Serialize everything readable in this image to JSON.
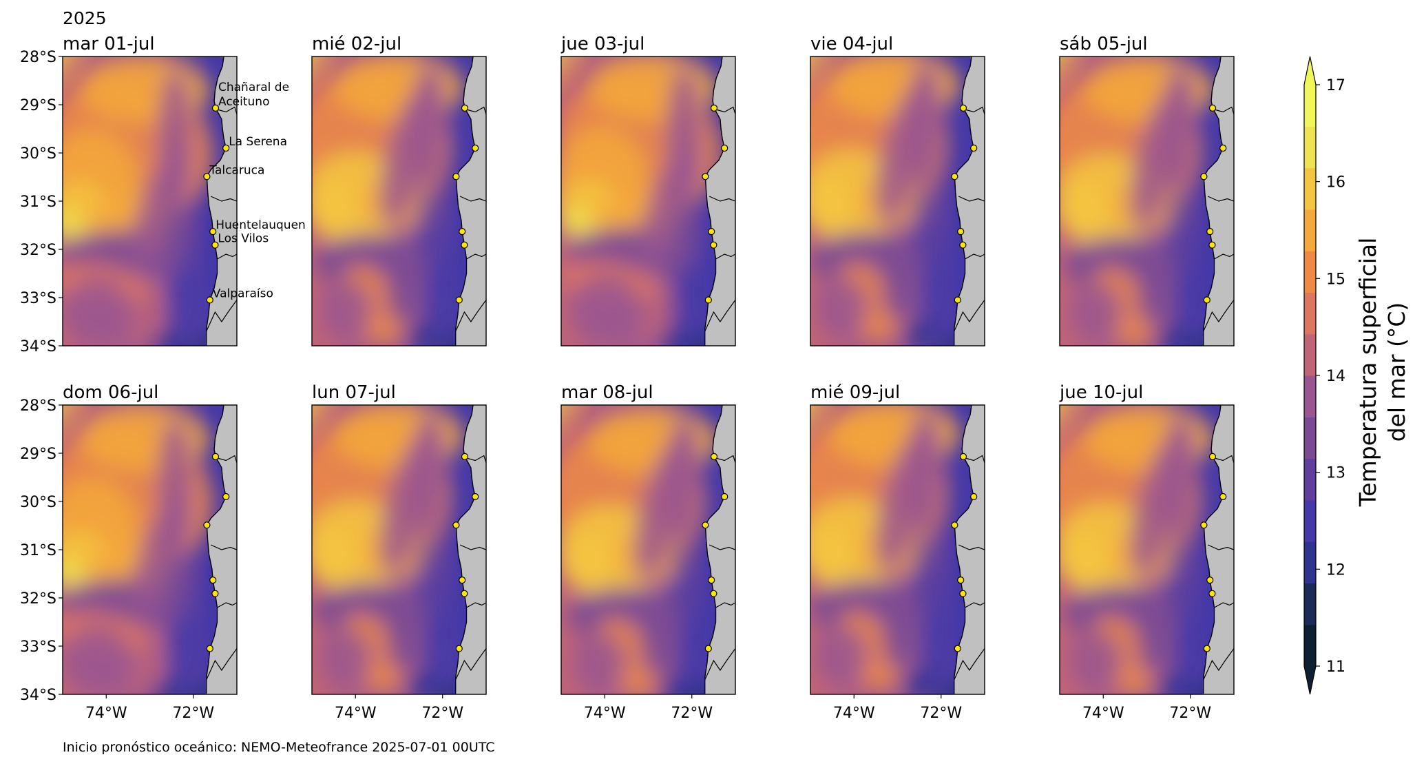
{
  "figure": {
    "year_label": "2025",
    "footer": "Inicio pronóstico oceánico: NEMO-Meteofrance 2025-07-01 00UTC"
  },
  "colorbar": {
    "label_line1": "Temperatura superficial",
    "label_line2": "del mar (°C)",
    "min": 11,
    "max": 17,
    "ticks": [
      "11",
      "12",
      "13",
      "14",
      "15",
      "16",
      "17"
    ],
    "extend": "both",
    "colors": [
      "#0d2033",
      "#1a2b55",
      "#2e3392",
      "#4538a8",
      "#5e3f9e",
      "#7a4a94",
      "#9a5690",
      "#c06477",
      "#dd7563",
      "#ef8a44",
      "#f5a93c",
      "#f4c540",
      "#ede353",
      "#f0f75a"
    ]
  },
  "chart_data": {
    "type": "heatmap",
    "variable": "Temperatura superficial del mar (°C)",
    "layout": "2 rows x 5 columns of map panels",
    "lat_range": [
      -34,
      -28
    ],
    "lon_range": [
      -75,
      -71
    ],
    "ytick_labels": [
      "28°S",
      "29°S",
      "30°S",
      "31°S",
      "32°S",
      "33°S",
      "34°S"
    ],
    "xtick_labels": [
      "74°W",
      "72°W"
    ],
    "panels": [
      {
        "title": "mar 01-jul",
        "show_station_labels": true
      },
      {
        "title": "mié 02-jul",
        "show_station_labels": false
      },
      {
        "title": "jue 03-jul",
        "show_station_labels": false
      },
      {
        "title": "vie 04-jul",
        "show_station_labels": false
      },
      {
        "title": "sáb 05-jul",
        "show_station_labels": false
      },
      {
        "title": "dom 06-jul",
        "show_station_labels": false
      },
      {
        "title": "lun 07-jul",
        "show_station_labels": false
      },
      {
        "title": "mar 08-jul",
        "show_station_labels": false
      },
      {
        "title": "mié 09-jul",
        "show_station_labels": false
      },
      {
        "title": "jue 10-jul",
        "show_station_labels": false
      }
    ],
    "stations": [
      {
        "name": "Chañaral de Aceituno",
        "label_lines": [
          "Chañaral de",
          "Aceituno"
        ],
        "lat": -29.07,
        "lon": -71.49
      },
      {
        "name": "La Serena",
        "label_lines": [
          "La Serena"
        ],
        "lat": -29.9,
        "lon": -71.25
      },
      {
        "name": "Talcaruca",
        "label_lines": [
          "Talcaruca"
        ],
        "lat": -30.49,
        "lon": -71.69
      },
      {
        "name": "Huentelauquen",
        "label_lines": [
          "Huentelauquen"
        ],
        "lat": -31.63,
        "lon": -71.55
      },
      {
        "name": "Los Vilos",
        "label_lines": [
          "Los Vilos"
        ],
        "lat": -31.91,
        "lon": -71.5
      },
      {
        "name": "Valparaíso",
        "label_lines": [
          "Valparaíso"
        ],
        "lat": -33.05,
        "lon": -71.62
      }
    ],
    "station_marker_color": "#ffe600",
    "land_color": "#c0c0c0"
  }
}
